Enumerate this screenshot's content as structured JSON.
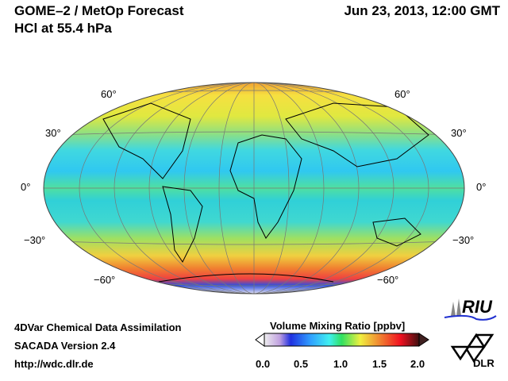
{
  "header": {
    "title": "GOME–2 / MetOp Forecast",
    "subtitle": "HCl at 55.4 hPa",
    "datetime": "Jun 23, 2013, 12:00 GMT"
  },
  "map": {
    "projection": "Hammer-Aitoff",
    "lat_labels_left": [
      "60°",
      "30°",
      "0°",
      "−30°",
      "−60°"
    ],
    "lat_labels_right": [
      "60°",
      "30°",
      "0°",
      "−30°",
      "−60°"
    ]
  },
  "footer": {
    "line1": "4DVar Chemical Data Assimilation",
    "line2": "SACADA Version 2.4",
    "line3": "http://wdc.dlr.de"
  },
  "colorbar": {
    "title": "Volume Mixing Ratio [ppbv]",
    "ticks": [
      "0.0",
      "0.5",
      "1.0",
      "1.5",
      "2.0"
    ],
    "range": [
      0,
      2
    ]
  },
  "logos": {
    "riu": "RIU",
    "dlr": "DLR"
  }
}
